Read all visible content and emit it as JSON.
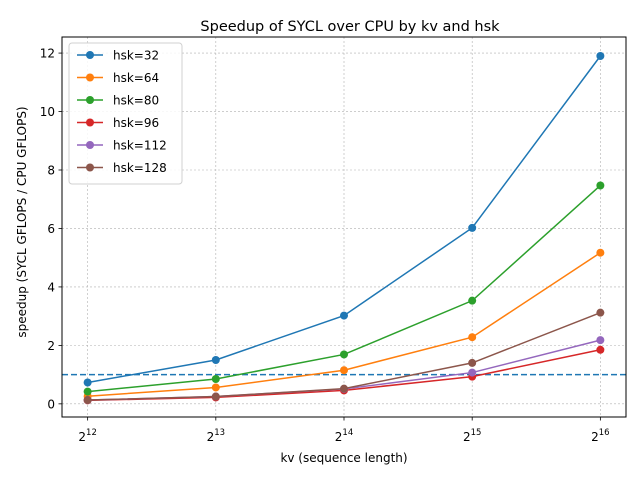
{
  "chart_data": {
    "type": "line",
    "title": "Speedup of SYCL over CPU by kv and hsk",
    "xlabel": "kv (sequence length)",
    "ylabel": "speedup (SYCL GFLOPS / CPU GFLOPS)",
    "x": [
      4096,
      8192,
      16384,
      32768,
      65536
    ],
    "x_tick_labels": [
      {
        "base": "2",
        "exp": "12"
      },
      {
        "base": "2",
        "exp": "13"
      },
      {
        "base": "2",
        "exp": "14"
      },
      {
        "base": "2",
        "exp": "15"
      },
      {
        "base": "2",
        "exp": "16"
      }
    ],
    "x_scale": "log2",
    "y_ticks": [
      0,
      2,
      4,
      6,
      8,
      10,
      12
    ],
    "ylim": [
      -0.45,
      12.55
    ],
    "grid": true,
    "legend_position": "top-left",
    "reference_line": {
      "y": 1.0,
      "style": "dashed",
      "color": "#1f77b4"
    },
    "series": [
      {
        "name": "hsk=32",
        "color": "#1f77b4",
        "values": [
          0.73,
          1.5,
          3.02,
          6.02,
          11.9
        ]
      },
      {
        "name": "hsk=64",
        "color": "#ff7f0e",
        "values": [
          0.26,
          0.56,
          1.15,
          2.28,
          5.17
        ]
      },
      {
        "name": "hsk=80",
        "color": "#2ca02c",
        "values": [
          0.42,
          0.85,
          1.69,
          3.53,
          7.47
        ]
      },
      {
        "name": "hsk=96",
        "color": "#d62728",
        "values": [
          0.12,
          0.22,
          0.46,
          0.93,
          1.85
        ]
      },
      {
        "name": "hsk=112",
        "color": "#9467bd",
        "values": [
          0.13,
          0.25,
          0.51,
          1.07,
          2.18
        ]
      },
      {
        "name": "hsk=128",
        "color": "#8c564b",
        "values": [
          0.13,
          0.25,
          0.52,
          1.4,
          3.12
        ]
      }
    ]
  }
}
